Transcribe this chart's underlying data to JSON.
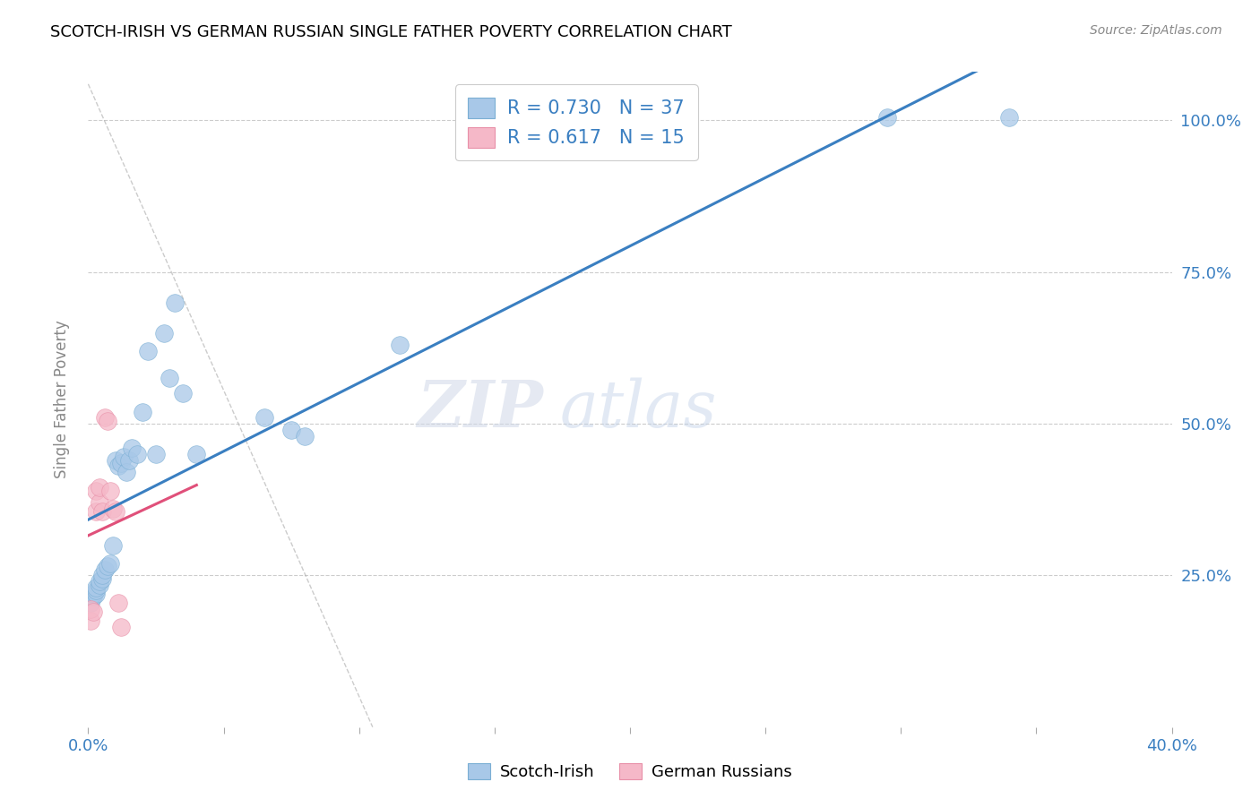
{
  "title": "SCOTCH-IRISH VS GERMAN RUSSIAN SINGLE FATHER POVERTY CORRELATION CHART",
  "source": "Source: ZipAtlas.com",
  "ylabel": "Single Father Poverty",
  "xlim": [
    0.0,
    0.4
  ],
  "ylim": [
    0.0,
    1.08
  ],
  "ytick_positions": [
    0.25,
    0.5,
    0.75,
    1.0
  ],
  "ytick_labels": [
    "25.0%",
    "50.0%",
    "75.0%",
    "100.0%"
  ],
  "scotch_irish_R": 0.73,
  "scotch_irish_N": 37,
  "german_russian_R": 0.617,
  "german_russian_N": 15,
  "scotch_irish_color": "#a8c8e8",
  "scotch_irish_edge_color": "#7bafd4",
  "scotch_irish_line_color": "#3a7fc1",
  "german_russian_color": "#f5b8c8",
  "german_russian_edge_color": "#e890a8",
  "german_russian_line_color": "#e0507a",
  "watermark_zip": "ZIP",
  "watermark_atlas": "atlas",
  "scotch_irish_x": [
    0.001,
    0.001,
    0.002,
    0.002,
    0.003,
    0.003,
    0.003,
    0.004,
    0.004,
    0.005,
    0.005,
    0.006,
    0.007,
    0.008,
    0.009,
    0.01,
    0.011,
    0.012,
    0.013,
    0.014,
    0.015,
    0.016,
    0.018,
    0.02,
    0.022,
    0.025,
    0.028,
    0.03,
    0.032,
    0.035,
    0.04,
    0.065,
    0.075,
    0.08,
    0.115,
    0.295,
    0.34
  ],
  "scotch_irish_y": [
    0.205,
    0.215,
    0.215,
    0.22,
    0.22,
    0.225,
    0.23,
    0.235,
    0.24,
    0.245,
    0.25,
    0.26,
    0.265,
    0.27,
    0.3,
    0.44,
    0.43,
    0.435,
    0.445,
    0.42,
    0.44,
    0.46,
    0.45,
    0.52,
    0.62,
    0.45,
    0.65,
    0.575,
    0.7,
    0.55,
    0.45,
    0.51,
    0.49,
    0.48,
    0.63,
    1.005,
    1.005
  ],
  "german_russian_x": [
    0.001,
    0.001,
    0.002,
    0.003,
    0.003,
    0.004,
    0.004,
    0.005,
    0.006,
    0.007,
    0.008,
    0.009,
    0.01,
    0.011,
    0.012
  ],
  "german_russian_y": [
    0.175,
    0.195,
    0.19,
    0.355,
    0.39,
    0.37,
    0.395,
    0.355,
    0.51,
    0.505,
    0.39,
    0.36,
    0.355,
    0.205,
    0.165
  ],
  "ref_line_x": [
    0.0,
    0.105
  ],
  "ref_line_y": [
    1.06,
    0.0
  ]
}
